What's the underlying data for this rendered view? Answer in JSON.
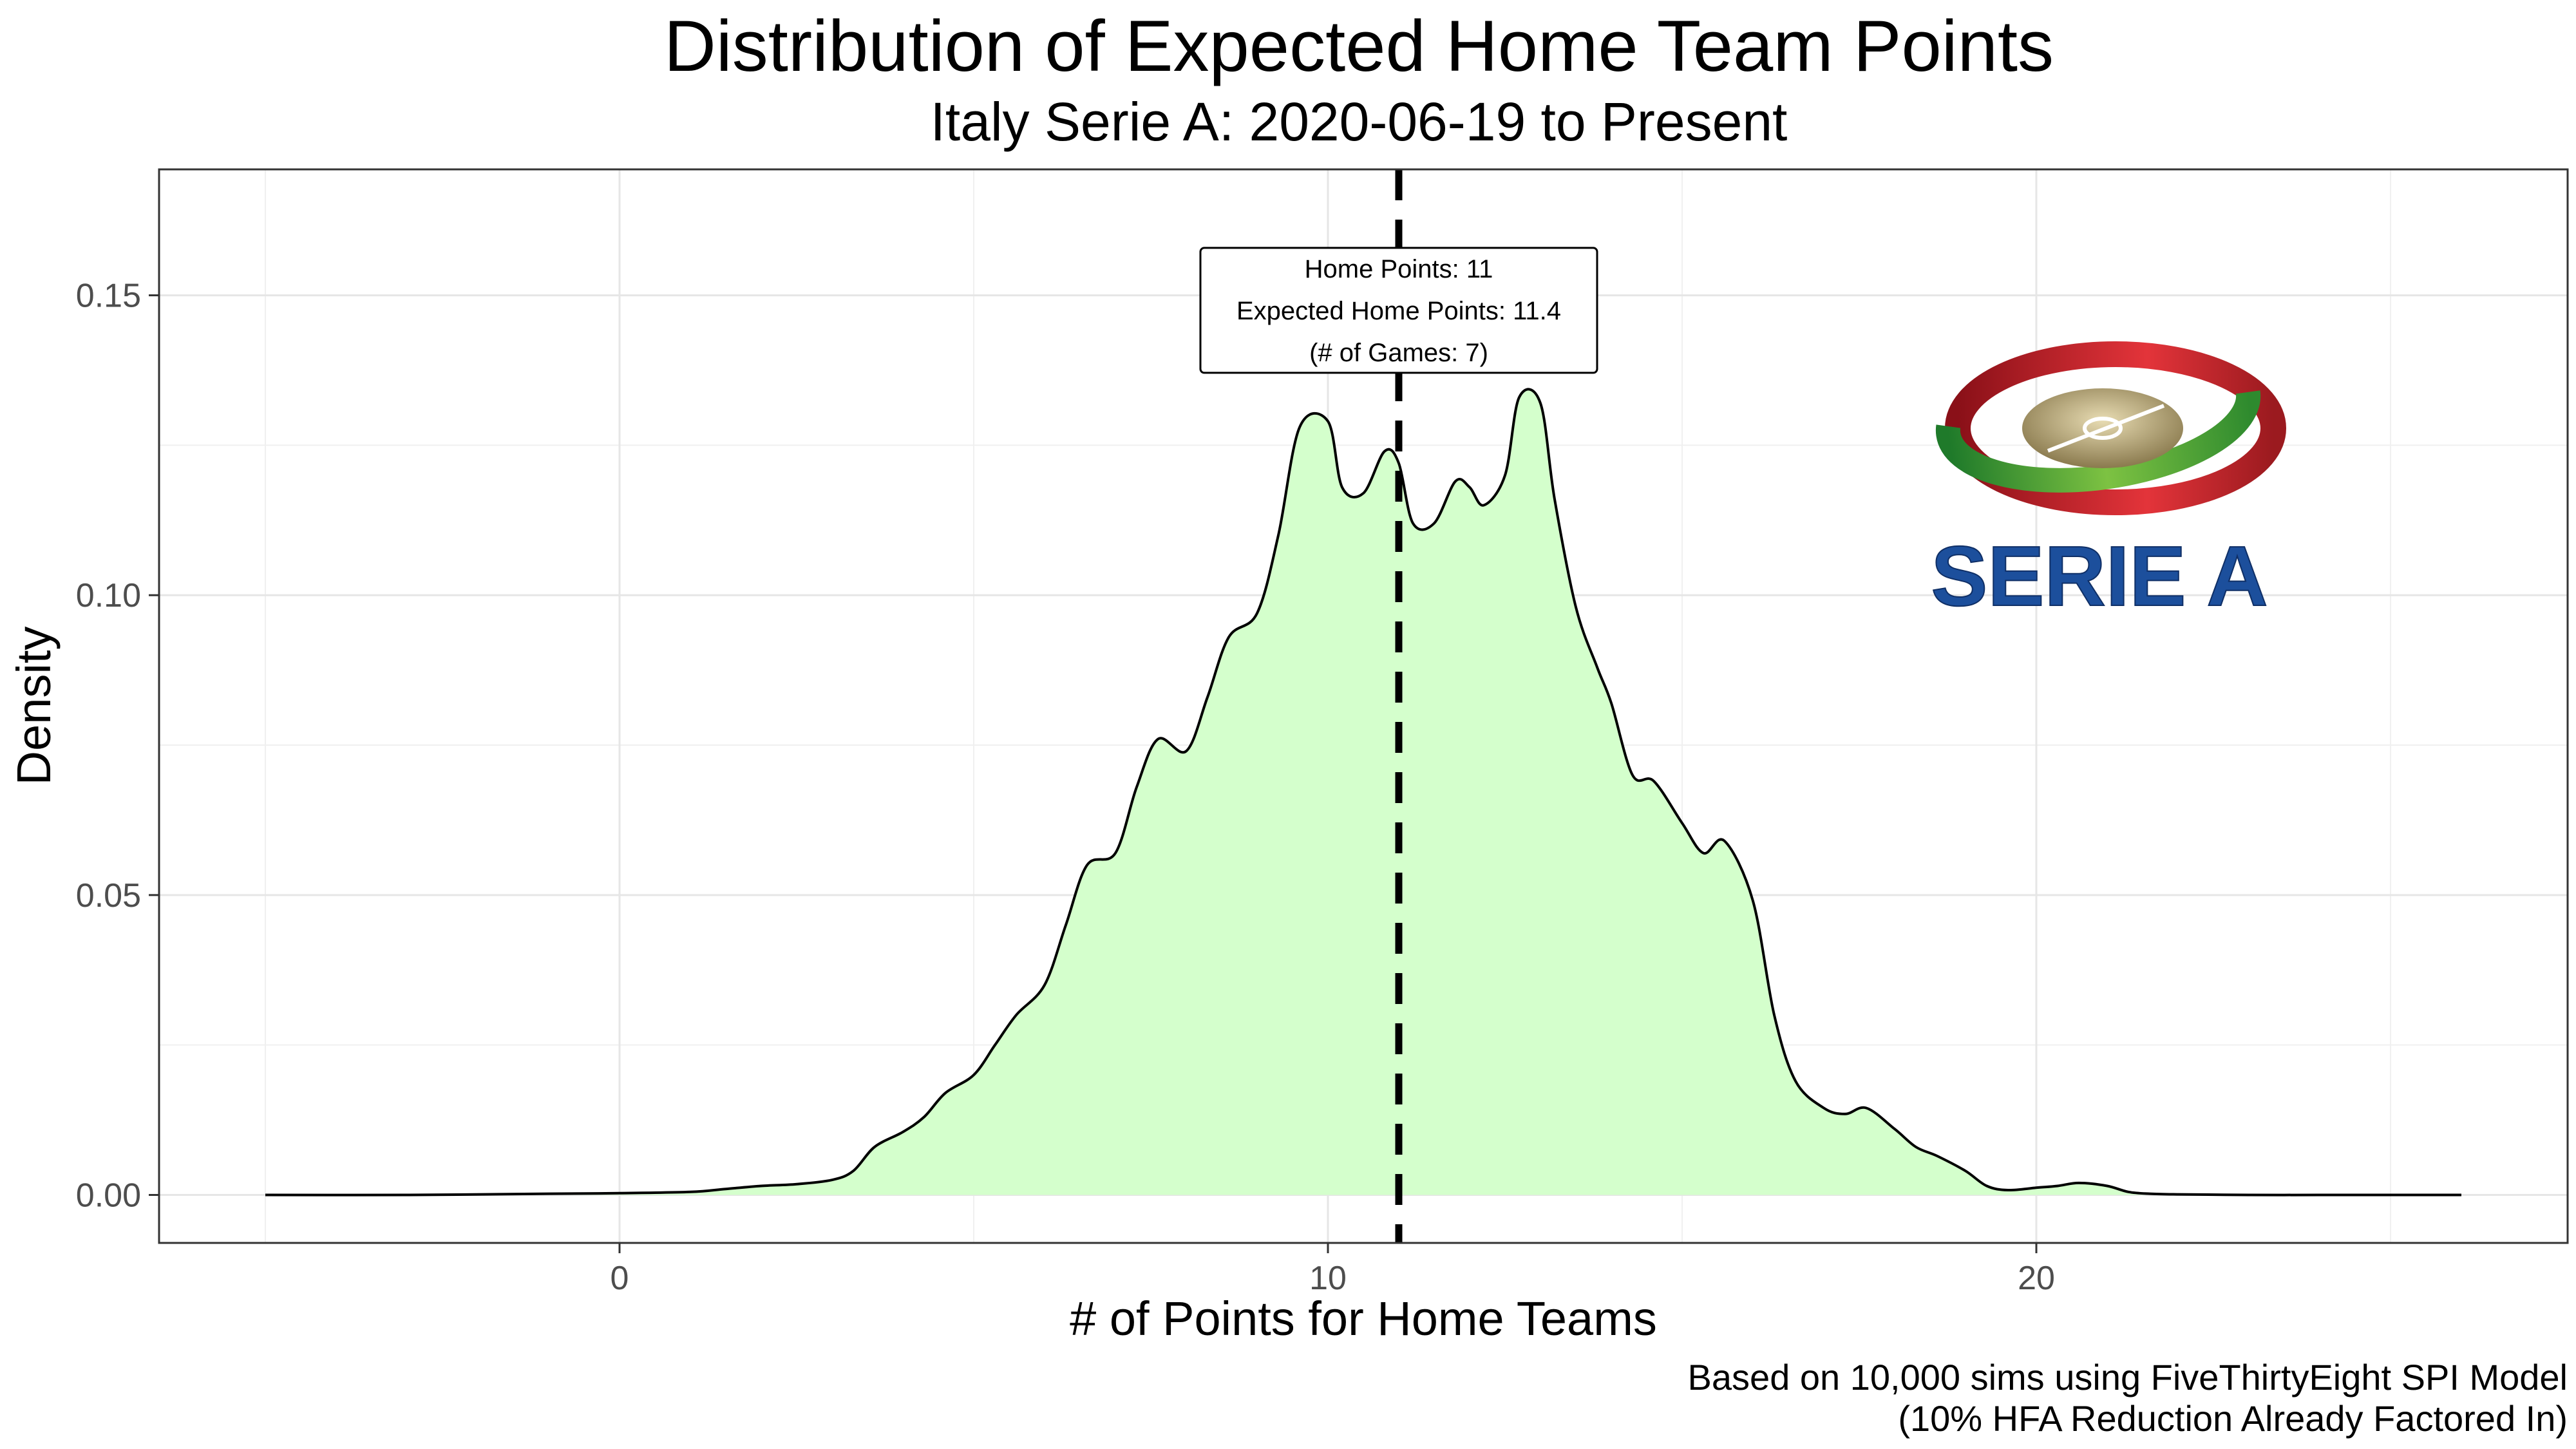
{
  "chart_data": {
    "type": "area",
    "title": "Distribution of Expected Home Team Points",
    "subtitle": "Italy Serie A: 2020-06-19 to Present",
    "xlabel": "# of Points for Home Teams",
    "ylabel": "Density",
    "xlim": [
      -6.5,
      27.5
    ],
    "ylim": [
      -0.008,
      0.171
    ],
    "x_ticks": [
      0,
      10,
      20
    ],
    "x_tick_labels": [
      "0",
      "10",
      "20"
    ],
    "x_minor_ticks": [
      -5,
      5,
      15,
      25
    ],
    "y_ticks": [
      0.0,
      0.05,
      0.1,
      0.15
    ],
    "y_tick_labels": [
      "0.00",
      "0.05",
      "0.10",
      "0.15"
    ],
    "y_minor_ticks": [
      0.025,
      0.075,
      0.125
    ],
    "grid": true,
    "fill_color": "#d4ffcc",
    "line_color": "#000000",
    "x": [
      -5,
      -3,
      -1,
      0,
      1,
      1.5,
      2,
      2.5,
      3,
      3.3,
      3.6,
      4,
      4.3,
      4.6,
      5,
      5.3,
      5.6,
      6,
      6.3,
      6.6,
      7,
      7.3,
      7.6,
      8,
      8.3,
      8.6,
      9,
      9.3,
      9.6,
      10,
      10.2,
      10.5,
      10.8,
      11,
      11.2,
      11.5,
      11.8,
      12,
      12.2,
      12.5,
      12.7,
      13,
      13.2,
      13.5,
      13.8,
      14,
      14.3,
      14.6,
      15,
      15.3,
      15.6,
      16,
      16.3,
      16.6,
      17,
      17.3,
      17.6,
      18,
      18.3,
      18.6,
      19,
      19.3,
      19.6,
      20,
      20.3,
      20.6,
      21,
      21.3,
      21.6,
      22,
      23,
      24,
      25,
      26
    ],
    "y": [
      0,
      0,
      0.0002,
      0.0003,
      0.0005,
      0.001,
      0.0015,
      0.0018,
      0.0025,
      0.004,
      0.008,
      0.0105,
      0.013,
      0.017,
      0.02,
      0.025,
      0.03,
      0.035,
      0.045,
      0.055,
      0.057,
      0.068,
      0.076,
      0.074,
      0.083,
      0.093,
      0.097,
      0.11,
      0.128,
      0.129,
      0.118,
      0.117,
      0.124,
      0.122,
      0.112,
      0.112,
      0.119,
      0.118,
      0.115,
      0.12,
      0.133,
      0.132,
      0.116,
      0.098,
      0.088,
      0.082,
      0.07,
      0.069,
      0.062,
      0.057,
      0.059,
      0.049,
      0.03,
      0.019,
      0.0145,
      0.0135,
      0.0145,
      0.011,
      0.008,
      0.0065,
      0.004,
      0.0015,
      0.0008,
      0.0012,
      0.0015,
      0.002,
      0.0015,
      0.0005,
      0.0002,
      0.0001,
      0,
      0,
      0,
      0
    ],
    "vline": {
      "x": 11,
      "style": "dashed",
      "color": "#000000"
    },
    "annotation": {
      "x": 11,
      "y": 0.1475,
      "lines": [
        "Home Points: 11",
        "Expected Home Points: 11.4",
        "(# of Games: 7)"
      ]
    },
    "caption": [
      "Based on 10,000 sims using FiveThirtyEight SPI Model",
      "(10% HFA Reduction Already Factored In)"
    ]
  },
  "logo": {
    "text": "SERIE A",
    "ring_colors": [
      "#3a9e33",
      "#b8a67a",
      "#c8202a"
    ],
    "text_color": "#1c4f9c"
  }
}
